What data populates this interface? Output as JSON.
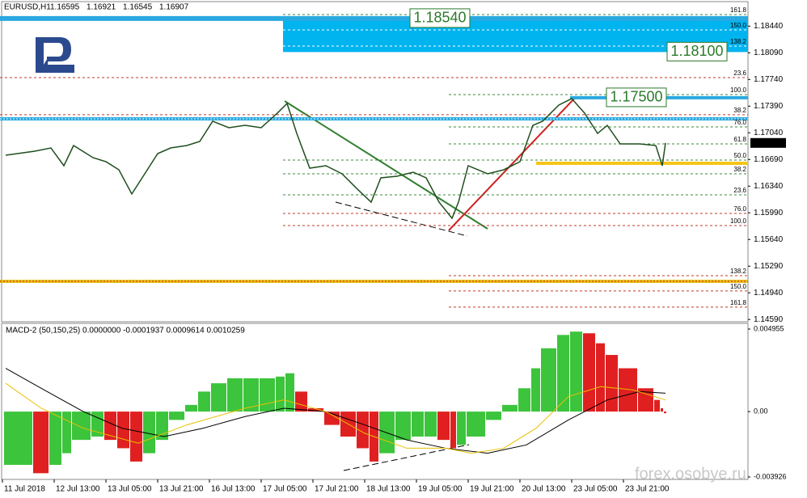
{
  "chart_data": [
    {
      "type": "line",
      "symbol": "EURUSD,H1",
      "ohlc": [
        1.16595,
        1.16921,
        1.16545,
        1.16907
      ],
      "x": [
        1,
        10,
        15,
        19,
        22,
        28,
        32,
        36,
        40,
        44,
        48,
        52,
        57,
        61,
        65,
        70,
        75,
        80,
        85,
        88,
        91,
        95,
        100,
        105,
        110,
        114,
        117,
        122,
        127,
        131,
        135,
        139,
        141,
        144,
        150,
        155,
        160,
        164,
        167,
        172,
        176,
        180,
        184,
        187,
        191,
        197,
        202,
        204,
        205
      ],
      "series": [
        {
          "color": "#1f4f1f",
          "values": [
            1.16746,
            1.16799,
            1.16841,
            1.16608,
            1.16873,
            1.16714,
            1.16661,
            1.16555,
            1.16237,
            1.16502,
            1.16767,
            1.16841,
            1.16873,
            1.16926,
            1.17192,
            1.17107,
            1.17138,
            1.17107,
            1.17298,
            1.17425,
            1.17032,
            1.16576,
            1.16608,
            1.16502,
            1.1629,
            1.1613,
            1.16449,
            1.1647,
            1.16523,
            1.16449,
            1.1613,
            1.15918,
            1.1613,
            1.16608,
            1.16502,
            1.16555,
            1.16661,
            1.17138,
            1.17192,
            1.17404,
            1.17489,
            1.17298,
            1.17032,
            1.17138,
            1.16894,
            1.16894,
            1.16873,
            1.16608,
            1.16907
          ]
        }
      ],
      "xticks": [
        {
          "value": 0,
          "label": "11 Jul 2018"
        },
        {
          "value": 16,
          "label": "12 Jul 13:00"
        },
        {
          "value": 32,
          "label": "13 Jul 05:00"
        },
        {
          "value": 48,
          "label": "13 Jul 21:00"
        },
        {
          "value": 64,
          "label": "16 Jul 13:00"
        },
        {
          "value": 80,
          "label": "17 Jul 05:00"
        },
        {
          "value": 96,
          "label": "17 Jul 21:00"
        },
        {
          "value": 112,
          "label": "18 Jul 13:00"
        },
        {
          "value": 128,
          "label": "19 Jul 05:00"
        },
        {
          "value": 144,
          "label": "19 Jul 21:00"
        },
        {
          "value": 160,
          "label": "20 Jul 13:00"
        },
        {
          "value": 176,
          "label": "23 Jul 05:00"
        },
        {
          "value": 192,
          "label": "23 Jul 21:00"
        }
      ],
      "ylim": [
        1.1456,
        1.1873
      ],
      "yticks": [
        {
          "value": 1.1844,
          "label": "1.18440"
        },
        {
          "value": 1.1809,
          "label": "1.18090"
        },
        {
          "value": 1.1774,
          "label": "1.17740"
        },
        {
          "value": 1.1739,
          "label": "1.17390"
        },
        {
          "value": 1.1704,
          "label": "1.17040"
        },
        {
          "value": 1.1669,
          "label": "1.16690"
        },
        {
          "value": 1.1634,
          "label": "1.16340"
        },
        {
          "value": 1.1599,
          "label": "1.15990"
        },
        {
          "value": 1.1564,
          "label": "1.15640"
        },
        {
          "value": 1.1529,
          "label": "1.15290"
        },
        {
          "value": 1.1494,
          "label": "1.14940"
        },
        {
          "value": 1.1459,
          "label": "1.14590"
        }
      ],
      "last_price": 1.16907,
      "price_boxes": [
        {
          "value": 1.1854,
          "label": "1.18540"
        },
        {
          "value": 1.181,
          "label": "1.18100"
        },
        {
          "value": 1.175,
          "label": "1.17500"
        }
      ],
      "levels": [
        {
          "label": "161.8",
          "value": 1.18592,
          "color": "#3a8a3a"
        },
        {
          "label": "150.0",
          "value": 1.1839,
          "color": "#ffffff"
        },
        {
          "label": "138.2",
          "value": 1.18178,
          "color": "#ffffff"
        },
        {
          "label": "23.6",
          "value": 1.17764,
          "color": "#c0392b"
        },
        {
          "label": "100.0",
          "value": 1.17541,
          "color": "#3a8a3a"
        },
        {
          "label": "38.2",
          "value": 1.17277,
          "color": "#c0392b"
        },
        {
          "label": "76.0",
          "value": 1.17117,
          "color": "#3a8a3a"
        },
        {
          "label": "61.8",
          "value": 1.16894,
          "color": "#3a8a3a"
        },
        {
          "label": "50.0",
          "value": 1.16682,
          "color": "#3a8a3a"
        },
        {
          "label": "38.2",
          "value": 1.16502,
          "color": "#3a8a3a"
        },
        {
          "label": "23.6",
          "value": 1.16226,
          "color": "#3a8a3a"
        },
        {
          "label": "76.0",
          "value": 1.15982,
          "color": "#c0392b"
        },
        {
          "label": "100.0",
          "value": 1.15823,
          "color": "#c0392b"
        },
        {
          "label": "138.2",
          "value": 1.15165,
          "color": "#c0392b"
        },
        {
          "label": "150.0",
          "value": 1.14964,
          "color": "#c0392b"
        },
        {
          "label": "161.8",
          "value": 1.14752,
          "color": "#c0392b"
        }
      ],
      "lines": [
        {
          "value": 1.1854,
          "color": "#29a9e0"
        },
        {
          "value": 1.17223,
          "color": "#29a9e0"
        },
        {
          "value": 1.1664,
          "color": "#f5c518"
        },
        {
          "value": 1.15091,
          "color": "#e8c21a"
        }
      ]
    },
    {
      "type": "macd",
      "title": "MACD-2 (50,150,25) 0.0000000 -0.0001937 0.0009614 0.0010259",
      "x": [
        1,
        10,
        15,
        19,
        22,
        28,
        32,
        36,
        40,
        44,
        48,
        52,
        57,
        61,
        65,
        70,
        75,
        80,
        85,
        88,
        91,
        95,
        100,
        105,
        110,
        114,
        117,
        122,
        127,
        131,
        135,
        139,
        141,
        144,
        150,
        155,
        160,
        164,
        167,
        172,
        176,
        180,
        184,
        187,
        191,
        197,
        202,
        204,
        205
      ],
      "values": [
        -0.0032,
        -0.0037,
        -0.0032,
        -0.0025,
        -0.0017,
        -0.0015,
        -0.0017,
        -0.0022,
        -0.003,
        -0.0025,
        -0.0017,
        -0.0005,
        0.0004,
        0.0012,
        0.0017,
        0.002,
        0.002,
        0.002,
        0.0021,
        0.0023,
        0.0012,
        0.0002,
        -0.0008,
        -0.0015,
        -0.0022,
        -0.003,
        -0.0025,
        -0.0017,
        -0.0015,
        -0.0015,
        -0.0017,
        -0.0022,
        -0.002,
        -0.0015,
        -0.0005,
        0.0004,
        0.0014,
        0.0026,
        0.0038,
        0.0046,
        0.0048,
        0.0047,
        0.0041,
        0.0034,
        0.0026,
        0.0014,
        0.0007,
        0.0002,
        -0.0001
      ],
      "up_color": "#3cc43c",
      "down_color": "#e02020",
      "lines": [
        {
          "color": "#000000",
          "x": [
            1,
            12,
            25,
            37,
            50,
            62,
            75,
            87,
            100,
            112,
            125,
            137,
            150,
            162,
            175,
            187,
            197,
            205
          ],
          "values": [
            0.0026,
            0.0014,
            0,
            -0.001,
            -0.0015,
            -0.001,
            -0.0003,
            0.0002,
            0,
            -0.0008,
            -0.0017,
            -0.0022,
            -0.0025,
            -0.002,
            -0.0005,
            0.0007,
            0.0012,
            0.0011
          ]
        },
        {
          "color": "#e8c000",
          "x": [
            1,
            12,
            25,
            42,
            57,
            75,
            87,
            100,
            112,
            125,
            137,
            145,
            155,
            165,
            175,
            185,
            195,
            205
          ],
          "values": [
            0.0017,
            0.0002,
            -0.001,
            -0.0019,
            -0.0008,
            0.0002,
            0.0007,
            0,
            -0.0013,
            -0.0022,
            -0.0022,
            -0.0025,
            -0.0022,
            -0.001,
            0.0009,
            0.0015,
            0.0013,
            0.0007
          ]
        }
      ],
      "ylim": [
        -0.003926,
        0.004955
      ],
      "yticks": [
        0.004955,
        {
          "value": 0,
          "label": "0.00"
        },
        {
          "value": -0.003926,
          "label": "-0.003926"
        }
      ]
    }
  ],
  "watermark": "forex.osobye.ru"
}
